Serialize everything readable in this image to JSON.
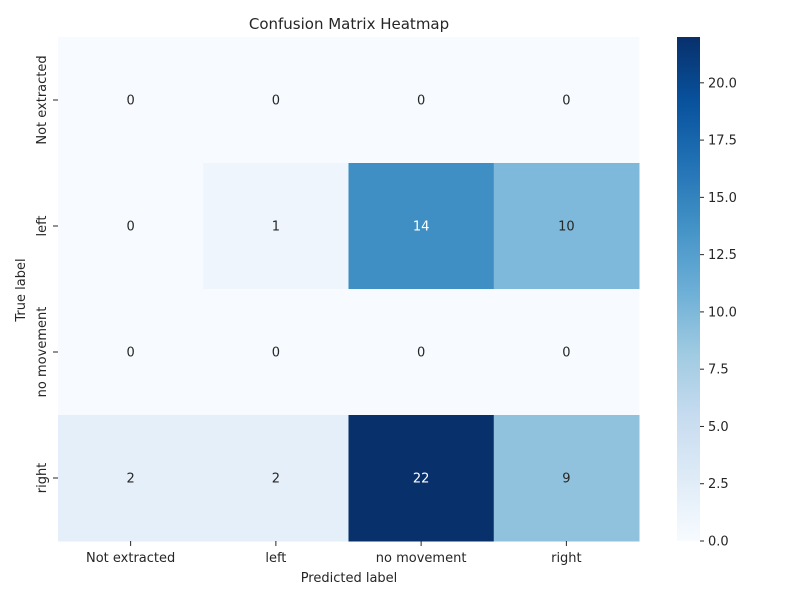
{
  "chart_data": {
    "type": "heatmap",
    "title": "Confusion Matrix Heatmap",
    "xlabel": "Predicted label",
    "ylabel": "True label",
    "x_categories": [
      "Not extracted",
      "left",
      "no movement",
      "right"
    ],
    "y_categories": [
      "Not extracted",
      "left",
      "no movement",
      "right"
    ],
    "values": [
      [
        0,
        0,
        0,
        0
      ],
      [
        0,
        1,
        14,
        10
      ],
      [
        0,
        0,
        0,
        0
      ],
      [
        2,
        2,
        22,
        9
      ]
    ],
    "annotate": true,
    "colormap": "Blues",
    "vmin": 0,
    "vmax": 22,
    "colorbar_ticks": [
      "0.0",
      "2.5",
      "5.0",
      "7.5",
      "10.0",
      "12.5",
      "15.0",
      "17.5",
      "20.0"
    ]
  }
}
